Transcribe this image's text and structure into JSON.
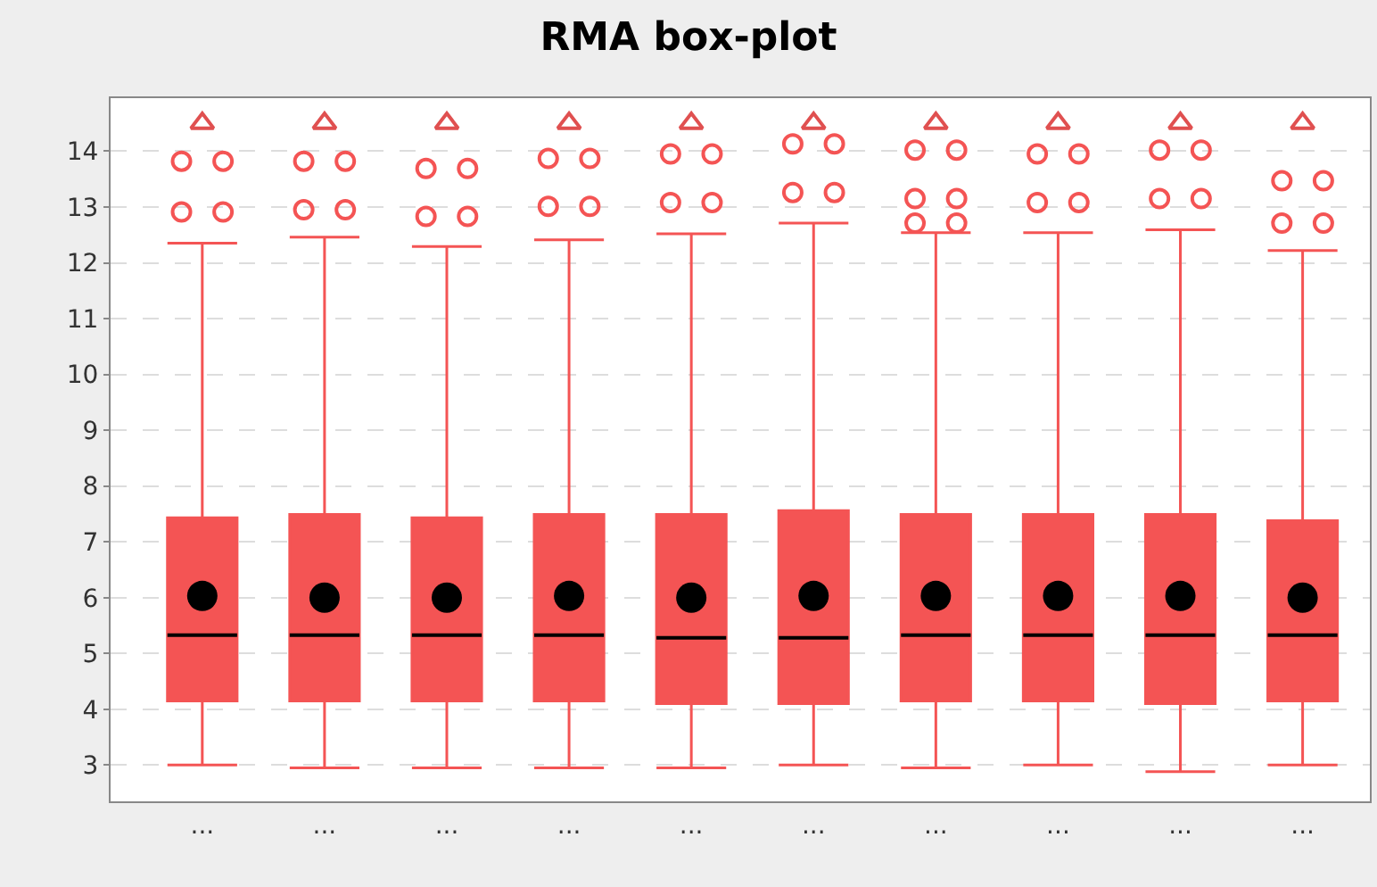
{
  "chart_data": {
    "type": "box",
    "title": "RMA box-plot",
    "categories": [
      "...",
      "...",
      "...",
      "...",
      "...",
      "...",
      "...",
      "...",
      "...",
      "..."
    ],
    "ylim": [
      2.35,
      14.95
    ],
    "yticks": [
      3,
      4,
      5,
      6,
      7,
      8,
      9,
      10,
      11,
      12,
      13,
      14
    ],
    "grid": "y",
    "series": [
      {
        "color": "#f45454",
        "boxes": [
          {
            "low": 3.0,
            "q1": 4.15,
            "median": 5.33,
            "q3": 7.43,
            "high": 12.35,
            "mean": 6.03,
            "outliers": [
              13.82,
              13.82,
              12.91,
              12.91
            ]
          },
          {
            "low": 2.95,
            "q1": 4.15,
            "median": 5.33,
            "q3": 7.49,
            "high": 12.46,
            "mean": 6.0,
            "outliers": [
              13.82,
              13.82,
              12.95,
              12.95
            ]
          },
          {
            "low": 2.95,
            "q1": 4.15,
            "median": 5.33,
            "q3": 7.43,
            "high": 12.29,
            "mean": 6.0,
            "outliers": [
              13.69,
              13.69,
              12.83,
              12.83
            ]
          },
          {
            "low": 2.95,
            "q1": 4.15,
            "median": 5.33,
            "q3": 7.49,
            "high": 12.41,
            "mean": 6.03,
            "outliers": [
              13.87,
              13.87,
              13.01,
              13.01
            ]
          },
          {
            "low": 2.95,
            "q1": 4.1,
            "median": 5.28,
            "q3": 7.49,
            "high": 12.52,
            "mean": 6.0,
            "outliers": [
              13.95,
              13.95,
              13.08,
              13.08
            ]
          },
          {
            "low": 3.0,
            "q1": 4.1,
            "median": 5.28,
            "q3": 7.56,
            "high": 12.71,
            "mean": 6.03,
            "outliers": [
              14.13,
              14.13,
              13.26,
              13.26
            ]
          },
          {
            "low": 2.95,
            "q1": 4.15,
            "median": 5.33,
            "q3": 7.49,
            "high": 12.54,
            "mean": 6.03,
            "outliers": [
              14.02,
              14.02,
              13.15,
              13.15,
              12.71,
              12.71
            ]
          },
          {
            "low": 3.0,
            "q1": 4.15,
            "median": 5.33,
            "q3": 7.49,
            "high": 12.54,
            "mean": 6.03,
            "outliers": [
              13.95,
              13.95,
              13.08,
              13.08
            ]
          },
          {
            "low": 2.88,
            "q1": 4.1,
            "median": 5.33,
            "q3": 7.49,
            "high": 12.59,
            "mean": 6.03,
            "outliers": [
              14.02,
              14.02,
              13.15,
              13.15
            ]
          },
          {
            "low": 3.0,
            "q1": 4.15,
            "median": 5.33,
            "q3": 7.38,
            "high": 12.22,
            "mean": 6.0,
            "outliers": [
              13.47,
              13.47,
              12.71,
              12.71
            ]
          }
        ]
      },
      {
        "type": "scatter",
        "marker": "triangle",
        "color": "#e05050",
        "values": [
          14.5,
          14.5,
          14.5,
          14.5,
          14.5,
          14.5,
          14.5,
          14.5,
          14.5,
          14.5
        ]
      }
    ]
  }
}
